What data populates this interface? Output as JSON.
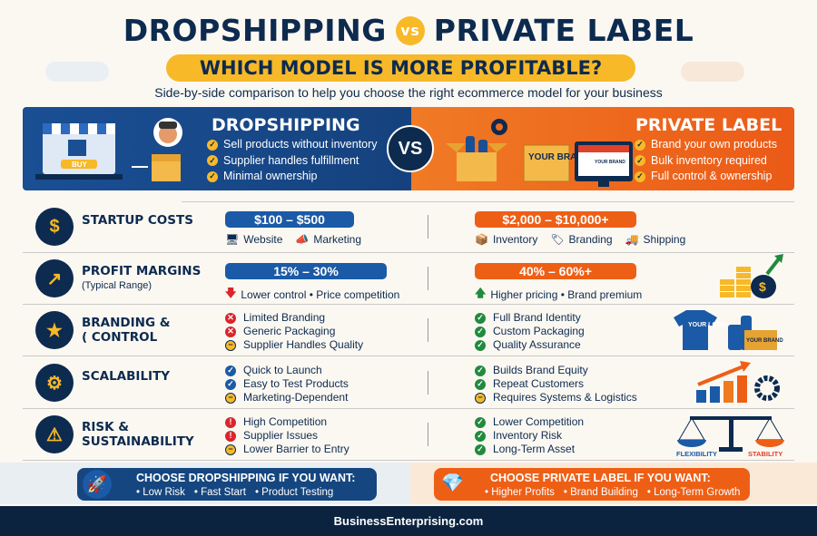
{
  "header": {
    "title_left": "DROPSHIPPING",
    "vs_small": "vs",
    "title_right": "PRIVATE LABEL",
    "question": "WHICH MODEL IS MORE PROFITABLE?",
    "tagline": "Side-by-side comparison to help you choose the right ecommerce model for your business"
  },
  "hero": {
    "vs": "VS",
    "left": {
      "title": "DROPSHIPPING",
      "color": "#1a4f94",
      "bullets": [
        "Sell products without inventory",
        "Supplier handles fulfillment",
        "Minimal ownership"
      ],
      "buy_label": "BUY"
    },
    "right": {
      "title": "PRIVATE LABEL",
      "color": "#ef6a1f",
      "bullets": [
        "Brand your own products",
        "Bulk inventory required",
        "Full control & ownership"
      ],
      "brand_label": "YOUR BRAND",
      "screen_label": "YOUR BRAND"
    }
  },
  "rows": [
    {
      "icon": "coin-stack-icon",
      "label": "STARTUP COSTS",
      "sub": "",
      "left": {
        "pill": "$100 – $500",
        "meta": [
          {
            "icon": "monitor-icon",
            "text": "Website"
          },
          {
            "icon": "megaphone-icon",
            "text": "Marketing"
          }
        ]
      },
      "right": {
        "pill": "$2,000 – $10,000+",
        "meta": [
          {
            "icon": "box-icon",
            "text": "Inventory"
          },
          {
            "icon": "tag-icon",
            "text": "Branding"
          },
          {
            "icon": "truck-icon",
            "text": "Shipping"
          }
        ]
      }
    },
    {
      "icon": "growth-chart-icon",
      "label": "PROFIT MARGINS",
      "sub": "(Typical Range)",
      "left": {
        "pill": "15% – 30%",
        "note_icon": "arrow-down-icon",
        "note": "Lower control • Price competition"
      },
      "right": {
        "pill": "40% – 60%+",
        "note_icon": "arrow-up-icon",
        "note": "Higher pricing • Brand premium"
      }
    },
    {
      "icon": "star-badge-icon",
      "label": "BRANDING &",
      "label2": "( CONTROL",
      "left": {
        "items": [
          {
            "status": "x",
            "text": "Limited Branding"
          },
          {
            "status": "x",
            "text": "Generic Packaging"
          },
          {
            "status": "minus",
            "text": "Supplier Handles Quality"
          }
        ]
      },
      "right": {
        "items": [
          {
            "status": "check",
            "text": "Full Brand Identity"
          },
          {
            "status": "check",
            "text": "Custom Packaging"
          },
          {
            "status": "check",
            "text": "Quality Assurance"
          }
        ]
      },
      "art_text": [
        "YOUR LOGO",
        "YOUR BRAND"
      ]
    },
    {
      "icon": "scale-up-icon",
      "label": "SCALABILITY",
      "left": {
        "items": [
          {
            "status": "bcheck",
            "text": "Quick to Launch"
          },
          {
            "status": "bcheck",
            "text": "Easy to Test Products"
          },
          {
            "status": "minus",
            "text": "Marketing-Dependent"
          }
        ]
      },
      "right": {
        "items": [
          {
            "status": "check",
            "text": "Builds Brand Equity"
          },
          {
            "status": "check",
            "text": "Repeat Customers"
          },
          {
            "status": "minus",
            "text": "Requires Systems & Logistics"
          }
        ]
      }
    },
    {
      "icon": "warning-icon",
      "label": "RISK &",
      "label2": "SUSTAINABILITY",
      "left": {
        "items": [
          {
            "status": "ex",
            "text": "High Competition"
          },
          {
            "status": "ex",
            "text": "Supplier Issues"
          },
          {
            "status": "minus",
            "text": "Lower Barrier to Entry"
          }
        ]
      },
      "right": {
        "items": [
          {
            "status": "check",
            "text": "Lower Competition"
          },
          {
            "status": "check",
            "text": "Inventory Risk"
          },
          {
            "status": "check",
            "text": "Long-Term Asset"
          }
        ]
      },
      "art_text": [
        "FLEXIBILITY",
        "STABILITY"
      ]
    }
  ],
  "cta": {
    "left": {
      "title": "CHOOSE DROPSHIPPING IF YOU WANT:",
      "items": [
        "• Low Risk",
        "• Fast Start",
        "• Product Testing"
      ],
      "icon": "rocket-icon"
    },
    "right": {
      "title": "CHOOSE PRIVATE LABEL IF YOU WANT:",
      "items": [
        "• Higher Profits",
        "• Brand Building",
        "• Long-Term Growth"
      ],
      "icon": "diamond-icon"
    }
  },
  "footer": {
    "site": "BusinessEnterprising.com"
  }
}
